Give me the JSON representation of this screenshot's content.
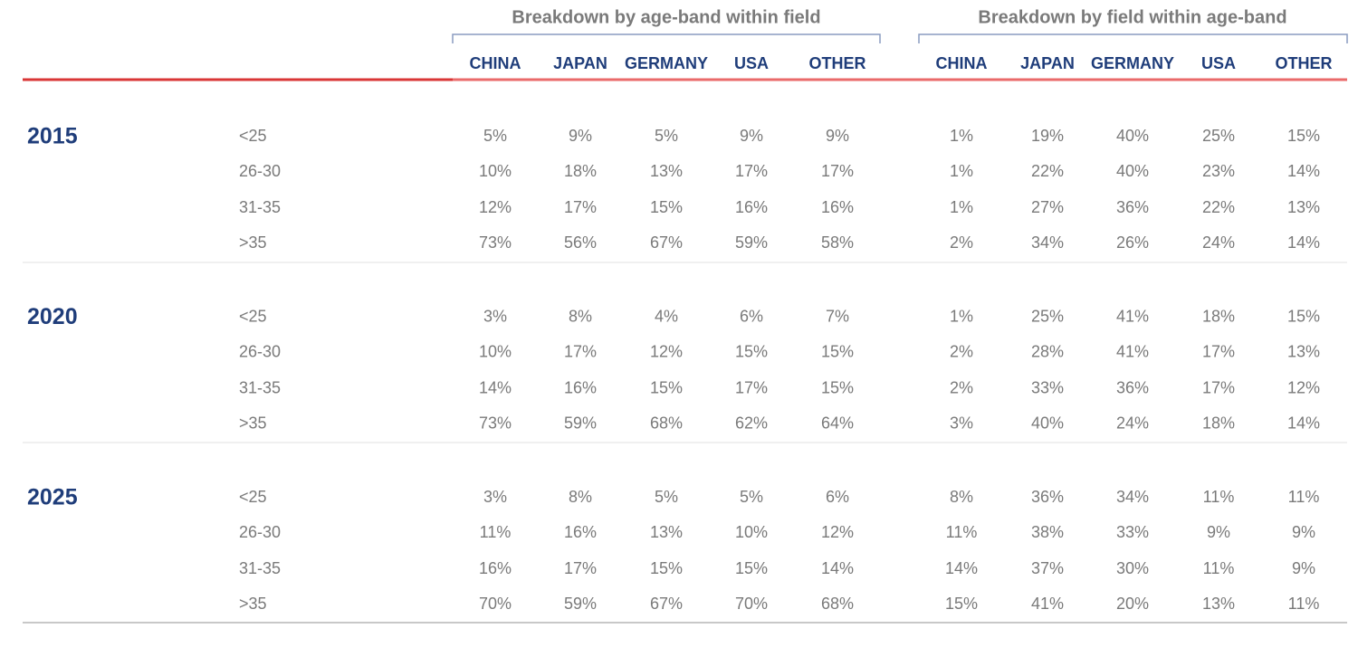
{
  "table": {
    "groups": [
      "Breakdown by age-band within field",
      "Breakdown by field within age-band"
    ],
    "columns": [
      [
        "CHINA",
        "JAPAN",
        "GERMANY",
        "USA",
        "OTHER"
      ],
      [
        "CHINA",
        "JAPAN",
        "GERMANY",
        "USA",
        "OTHER"
      ]
    ],
    "sections": [
      {
        "year": "2015",
        "rows": [
          {
            "band": "<25",
            "cells": [
              "5%",
              "9%",
              "5%",
              "9%",
              "9%",
              "1%",
              "19%",
              "40%",
              "25%",
              "15%"
            ]
          },
          {
            "band": "26-30",
            "cells": [
              "10%",
              "18%",
              "13%",
              "17%",
              "17%",
              "1%",
              "22%",
              "40%",
              "23%",
              "14%"
            ]
          },
          {
            "band": "31-35",
            "cells": [
              "12%",
              "17%",
              "15%",
              "16%",
              "16%",
              "1%",
              "27%",
              "36%",
              "22%",
              "13%"
            ]
          },
          {
            "band": ">35",
            "cells": [
              "73%",
              "56%",
              "67%",
              "59%",
              "58%",
              "2%",
              "34%",
              "26%",
              "24%",
              "14%"
            ]
          }
        ]
      },
      {
        "year": "2020",
        "rows": [
          {
            "band": "<25",
            "cells": [
              "3%",
              "8%",
              "4%",
              "6%",
              "7%",
              "1%",
              "25%",
              "41%",
              "18%",
              "15%"
            ]
          },
          {
            "band": "26-30",
            "cells": [
              "10%",
              "17%",
              "12%",
              "15%",
              "15%",
              "2%",
              "28%",
              "41%",
              "17%",
              "13%"
            ]
          },
          {
            "band": "31-35",
            "cells": [
              "14%",
              "16%",
              "15%",
              "17%",
              "15%",
              "2%",
              "33%",
              "36%",
              "17%",
              "12%"
            ]
          },
          {
            "band": ">35",
            "cells": [
              "73%",
              "59%",
              "68%",
              "62%",
              "64%",
              "3%",
              "40%",
              "24%",
              "18%",
              "14%"
            ]
          }
        ]
      },
      {
        "year": "2025",
        "rows": [
          {
            "band": "<25",
            "cells": [
              "3%",
              "8%",
              "5%",
              "5%",
              "6%",
              "8%",
              "36%",
              "34%",
              "11%",
              "11%"
            ]
          },
          {
            "band": "26-30",
            "cells": [
              "11%",
              "16%",
              "13%",
              "10%",
              "12%",
              "11%",
              "38%",
              "33%",
              "9%",
              "9%"
            ]
          },
          {
            "band": "31-35",
            "cells": [
              "16%",
              "17%",
              "15%",
              "15%",
              "14%",
              "14%",
              "37%",
              "30%",
              "11%",
              "9%"
            ]
          },
          {
            "band": ">35",
            "cells": [
              "70%",
              "59%",
              "67%",
              "70%",
              "68%",
              "15%",
              "41%",
              "20%",
              "13%",
              "11%"
            ]
          }
        ]
      }
    ]
  }
}
